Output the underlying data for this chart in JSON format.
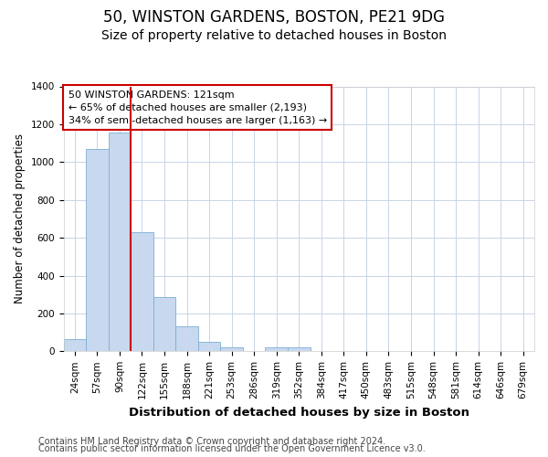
{
  "title_line1": "50, WINSTON GARDENS, BOSTON, PE21 9DG",
  "title_line2": "Size of property relative to detached houses in Boston",
  "xlabel": "Distribution of detached houses by size in Boston",
  "ylabel": "Number of detached properties",
  "categories": [
    "24sqm",
    "57sqm",
    "90sqm",
    "122sqm",
    "155sqm",
    "188sqm",
    "221sqm",
    "253sqm",
    "286sqm",
    "319sqm",
    "352sqm",
    "384sqm",
    "417sqm",
    "450sqm",
    "483sqm",
    "515sqm",
    "548sqm",
    "581sqm",
    "614sqm",
    "646sqm",
    "679sqm"
  ],
  "values": [
    65,
    1070,
    1155,
    630,
    285,
    130,
    48,
    20,
    0,
    22,
    22,
    0,
    0,
    0,
    0,
    0,
    0,
    0,
    0,
    0,
    0
  ],
  "bar_color": "#c8d8ee",
  "bar_edge_color": "#7aafd4",
  "vline_x": 2.5,
  "vline_color": "#cc0000",
  "annotation_text": "50 WINSTON GARDENS: 121sqm\n← 65% of detached houses are smaller (2,193)\n34% of semi-detached houses are larger (1,163) →",
  "annotation_box_color": "#ffffff",
  "annotation_box_edge": "#cc0000",
  "ylim": [
    0,
    1400
  ],
  "yticks": [
    0,
    200,
    400,
    600,
    800,
    1000,
    1200,
    1400
  ],
  "grid_color": "#c8d4e8",
  "background_color": "#ffffff",
  "plot_bg_color": "#ffffff",
  "footer_line1": "Contains HM Land Registry data © Crown copyright and database right 2024.",
  "footer_line2": "Contains public sector information licensed under the Open Government Licence v3.0.",
  "title_fontsize": 12,
  "subtitle_fontsize": 10,
  "xlabel_fontsize": 9.5,
  "ylabel_fontsize": 8.5,
  "tick_fontsize": 7.5,
  "footer_fontsize": 7.0,
  "annot_fontsize": 8.0
}
